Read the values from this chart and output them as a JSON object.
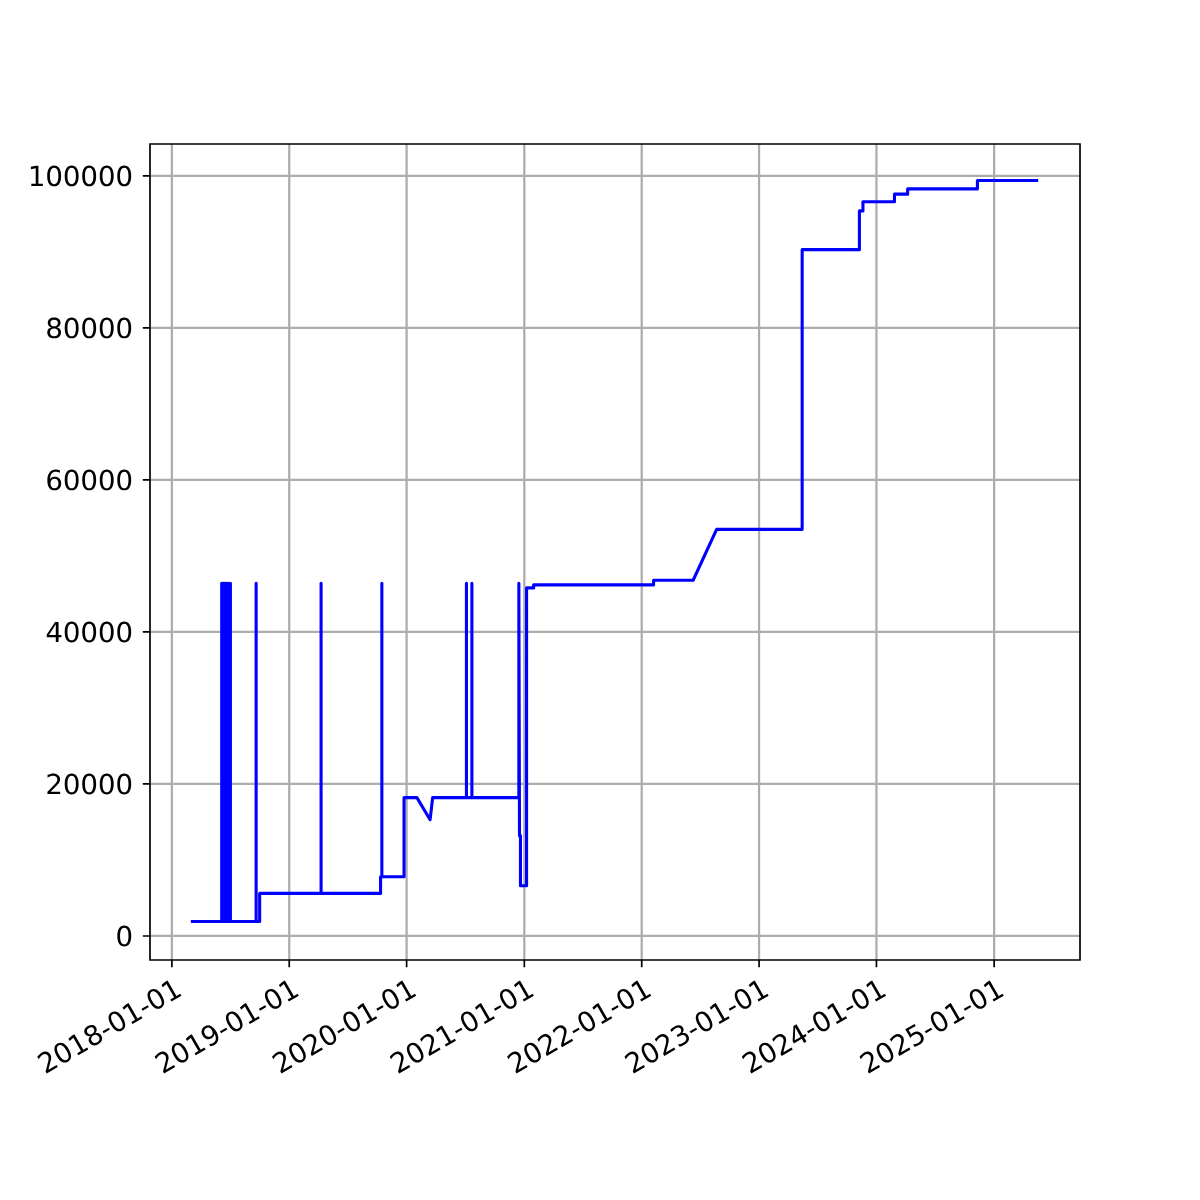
{
  "chart_data": {
    "type": "line",
    "color": "#0000ff",
    "grid": true,
    "x": [
      "2018-03-01",
      "2018-06-05",
      "2018-06-05",
      "2018-06-05",
      "2018-06-08",
      "2018-06-08",
      "2018-06-08",
      "2018-06-11",
      "2018-06-11",
      "2018-06-11",
      "2018-06-14",
      "2018-06-14",
      "2018-06-14",
      "2018-06-18",
      "2018-06-18",
      "2018-06-18",
      "2018-06-22",
      "2018-06-22",
      "2018-06-22",
      "2018-06-26",
      "2018-06-26",
      "2018-06-26",
      "2018-07-02",
      "2018-07-02",
      "2018-07-02",
      "2018-09-20",
      "2018-09-20",
      "2018-09-20",
      "2018-10-01",
      "2018-10-01",
      "2019-04-10",
      "2019-04-10",
      "2019-04-10",
      "2019-10-12",
      "2019-10-12",
      "2019-10-16",
      "2019-10-16",
      "2019-10-16",
      "2019-12-24",
      "2019-12-24",
      "2020-02-02",
      "2020-03-14",
      "2020-03-22",
      "2020-07-05",
      "2020-07-05",
      "2020-07-05",
      "2020-07-22",
      "2020-07-22",
      "2020-07-22",
      "2020-12-15",
      "2020-12-15",
      "2020-12-17",
      "2020-12-20",
      "2020-12-20",
      "2021-01-08",
      "2021-01-08",
      "2021-01-30",
      "2021-01-30",
      "2021-02-18",
      "2021-02-18",
      "2022-02-07",
      "2022-02-07",
      "2022-06-10",
      "2022-08-22",
      "2023-05-15",
      "2023-05-15",
      "2023-11-09",
      "2023-11-09",
      "2023-11-20",
      "2023-11-20",
      "2024-02-26",
      "2024-02-26",
      "2024-04-07",
      "2024-04-07",
      "2024-11-10",
      "2024-11-10",
      "2025-05-18"
    ],
    "values": [
      1900,
      1900,
      46400,
      1900,
      1900,
      46400,
      1900,
      1900,
      46400,
      1900,
      1900,
      46400,
      1900,
      1900,
      46400,
      1900,
      1900,
      46400,
      1900,
      1900,
      46400,
      1900,
      1900,
      46400,
      1900,
      1900,
      46400,
      1900,
      1900,
      5600,
      5600,
      46400,
      5600,
      5600,
      7800,
      7800,
      46400,
      7800,
      7800,
      18200,
      18200,
      15300,
      18200,
      18200,
      46400,
      18200,
      18200,
      46400,
      18200,
      18200,
      46400,
      13200,
      13200,
      6600,
      6600,
      45800,
      45800,
      46200,
      46200,
      46200,
      46200,
      46800,
      46800,
      53500,
      53500,
      90300,
      90300,
      95400,
      95400,
      96600,
      96600,
      97600,
      97600,
      98300,
      98300,
      99400,
      99400
    ],
    "xlim": [
      "2017-10-25",
      "2025-09-25"
    ],
    "xticks": [
      "2018-01-01",
      "2019-01-01",
      "2020-01-01",
      "2021-01-01",
      "2022-01-01",
      "2023-01-01",
      "2024-01-01",
      "2025-01-01"
    ],
    "ylim": [
      -3160,
      104200
    ],
    "yticks": [
      0,
      20000,
      40000,
      60000,
      80000,
      100000
    ]
  }
}
